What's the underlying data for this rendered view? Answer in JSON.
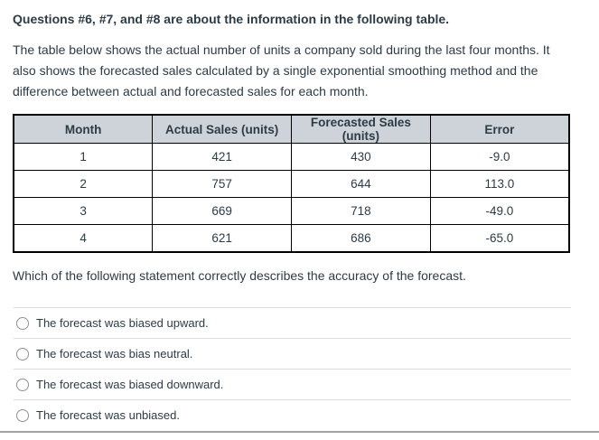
{
  "colors": {
    "text": "#2d3b45",
    "table-border": "#000000",
    "header-bg": "#ced3da",
    "divider": "#dcdcdc",
    "radio-border": "#909090",
    "bottom-line": "#9ea3a8"
  },
  "header": {
    "title": "Questions #6, #7, and #8 are about the information in the following table."
  },
  "description": "The table below shows the actual number of units a company sold during the last four months. It also shows the forecasted sales calculated by a single exponential smoothing method and the difference between actual and forecasted sales for each month.",
  "table": {
    "columns": [
      "Month",
      "Actual Sales (units)",
      "Forecasted Sales (units)",
      "Error"
    ],
    "rows": [
      [
        "1",
        "421",
        "430",
        "-9.0"
      ],
      [
        "2",
        "757",
        "644",
        "113.0"
      ],
      [
        "3",
        "669",
        "718",
        "-49.0"
      ],
      [
        "4",
        "621",
        "686",
        "-65.0"
      ]
    ]
  },
  "question": "Which of the following statement correctly describes the accuracy of the forecast.",
  "options": [
    {
      "label": "The forecast was biased upward.",
      "selected": false
    },
    {
      "label": "The forecast was bias neutral.",
      "selected": false
    },
    {
      "label": "The forecast was biased downward.",
      "selected": false
    },
    {
      "label": "The forecast was unbiased.",
      "selected": false
    }
  ]
}
